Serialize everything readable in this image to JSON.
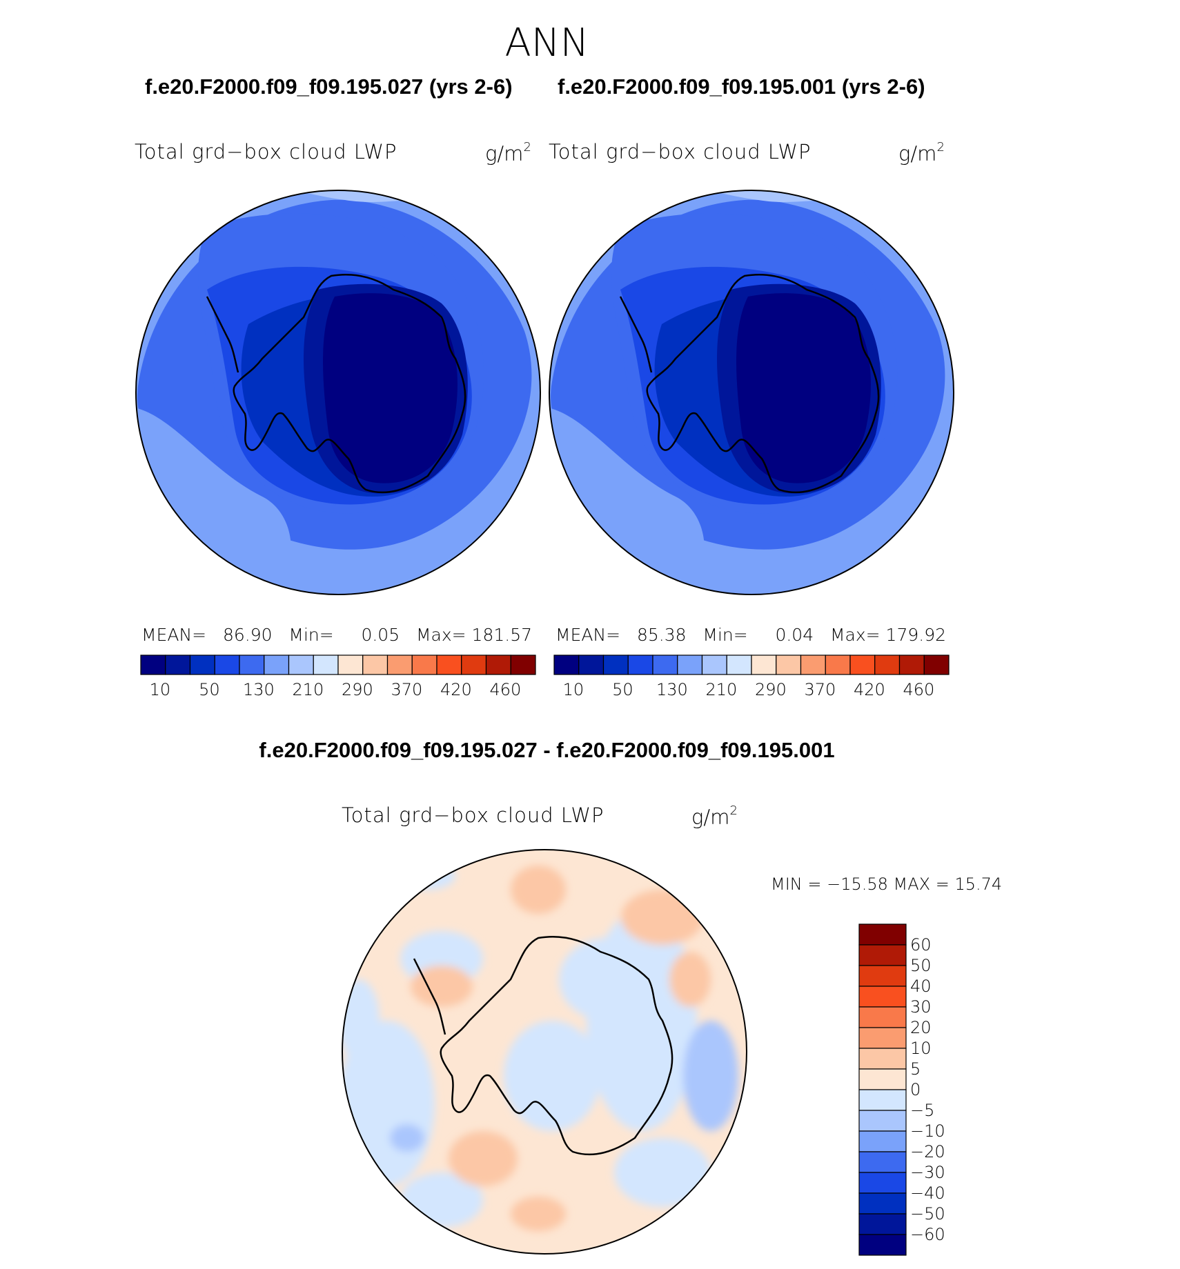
{
  "page": {
    "season_title": "ANN",
    "case_a": "f.e20.F2000.f09_f09.195.027 (yrs 2-6)",
    "case_b": "f.e20.F2000.f09_f09.195.001 (yrs 2-6)",
    "diff_title": "f.e20.F2000.f09_f09.195.027 - f.e20.F2000.f09_f09.195.001"
  },
  "panels": [
    {
      "variable": "Total grd−box cloud LWP",
      "units": "g/m",
      "units_exp": "2",
      "mean_label": "MEAN=",
      "mean": "86.90",
      "min_label": "Min=",
      "min": "0.05",
      "max_label": "Max=",
      "max": "181.57"
    },
    {
      "variable": "Total grd−box cloud LWP",
      "units": "g/m",
      "units_exp": "2",
      "mean_label": "MEAN=",
      "mean": "85.38",
      "min_label": "Min=",
      "min": "0.04",
      "max_label": "Max=",
      "max": "179.92"
    }
  ],
  "diff_panel": {
    "variable": "Total grd−box cloud LWP",
    "units": "g/m",
    "units_exp": "2",
    "stats": "MIN = −15.58 MAX =   15.74"
  },
  "map": {
    "projection": "polar stereographic",
    "region": "Southern Hemisphere",
    "coastline": "Antarctica"
  },
  "colorbar_abs": {
    "colors": [
      "#000080",
      "#00169a",
      "#0030c0",
      "#1a48e6",
      "#3d6af0",
      "#7aa2fa",
      "#aac6fd",
      "#d3e6fe",
      "#fde6d3",
      "#fcc7a6",
      "#fa9c70",
      "#f9794a",
      "#f9501f",
      "#e03b10",
      "#b01a06",
      "#800000"
    ],
    "labels": [
      "10",
      "50",
      "130",
      "210",
      "290",
      "370",
      "420",
      "460"
    ]
  },
  "colorbar_diff": {
    "colors_top_to_bottom": [
      "#800000",
      "#b01a06",
      "#e03b10",
      "#f9501f",
      "#f9794a",
      "#fa9c70",
      "#fcc7a6",
      "#fde6d3",
      "#d3e6fe",
      "#aac6fd",
      "#7aa2fa",
      "#3d6af0",
      "#1a48e6",
      "#0030c0",
      "#00169a",
      "#000080"
    ],
    "labels": [
      "60",
      "50",
      "40",
      "30",
      "20",
      "10",
      "5",
      "0",
      "−5",
      "−10",
      "−20",
      "−30",
      "−40",
      "−50",
      "−60"
    ]
  }
}
